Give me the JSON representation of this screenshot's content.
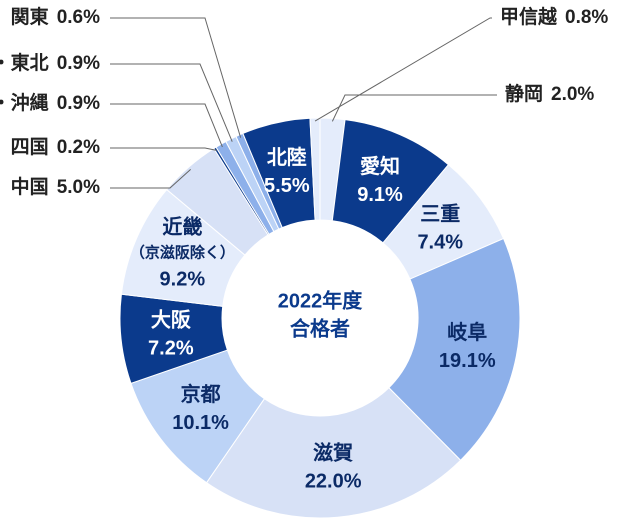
{
  "chart_data": {
    "type": "donut",
    "title": [
      "2022年度",
      "合格者"
    ],
    "categories": [
      "静岡",
      "愛知",
      "三重",
      "岐阜",
      "滋賀",
      "京都",
      "大阪",
      "近畿",
      "中国",
      "四国",
      "九州・沖縄",
      "北海道・東北",
      "関東",
      "北陸",
      "甲信越"
    ],
    "annotations": [
      "（京滋阪除く）"
    ],
    "values": [
      2.0,
      9.1,
      7.4,
      19.1,
      22.0,
      10.1,
      7.2,
      9.2,
      5.0,
      0.2,
      0.9,
      0.9,
      0.6,
      5.5,
      0.8
    ],
    "value_labels": [
      "2.0%",
      "9.1%",
      "7.4%",
      "19.1%",
      "22.0%",
      "10.1%",
      "7.2%",
      "9.2%",
      "5.0%",
      "0.2%",
      "0.9%",
      "0.9%",
      "0.6%",
      "5.5%",
      "0.8%"
    ],
    "colors": [
      "#e4ecfb",
      "#0b3a8c",
      "#e4ecfb",
      "#8db0ea",
      "#d7e1f6",
      "#bcd3f6",
      "#0b3a8c",
      "#e4ecfb",
      "#d7e1f6",
      "#0b3a8c",
      "#8db0ea",
      "#bcd3f6",
      "#8db0ea",
      "#0b3a8c",
      "#e4ecfb"
    ]
  }
}
